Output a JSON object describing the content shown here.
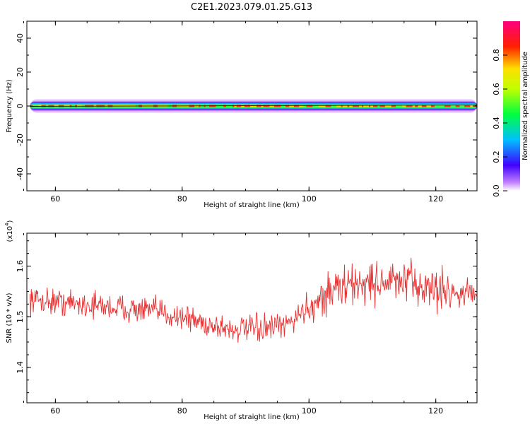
{
  "title": "C2E1.2023.079.01.25.G13",
  "chart_data": [
    {
      "type": "heatmap",
      "xlabel": "Height of straight line (km)",
      "ylabel": "Frequency (Hz)",
      "xlim": [
        55.5,
        126.5
      ],
      "ylim": [
        -50,
        50
      ],
      "x_ticks": [
        60,
        80,
        100,
        120
      ],
      "y_ticks": [
        -40,
        -20,
        0,
        20,
        40
      ],
      "band": {
        "center_hz": 0,
        "x_start": 56,
        "peak_amplitude": 0.95,
        "core_halfwidth_hz": 1.0,
        "outer_halfwidth_hz": 4.0
      },
      "colorbar": {
        "label": "Normalized spectral amplitude",
        "ticks": [
          0.0,
          0.2,
          0.4,
          0.6,
          0.8
        ],
        "range": [
          0,
          1
        ]
      }
    },
    {
      "type": "line",
      "xlabel": "Height of straight line (km)",
      "ylabel": "SNR (10 * v/v)",
      "y_multiplier": "(x10^4)",
      "y_multiplier_base": "(x10",
      "y_multiplier_exp": "4",
      "y_multiplier_close": ")",
      "xlim": [
        55.5,
        126.5
      ],
      "ylim": [
        13300,
        16650
      ],
      "x_ticks": [
        60,
        80,
        100,
        120
      ],
      "y_ticks": [
        14000,
        15000,
        16000
      ],
      "y_tick_labels": [
        "1.4",
        "1.5",
        "1.6"
      ],
      "color": "#e83030",
      "series": [
        {
          "x": [
            56,
            60,
            64,
            68,
            72,
            76,
            80,
            84,
            88,
            92,
            96,
            100,
            104,
            108,
            112,
            116,
            120,
            124,
            126
          ],
          "y": [
            15350,
            15300,
            15250,
            15200,
            15150,
            15100,
            15000,
            14850,
            14750,
            14750,
            14800,
            15200,
            15550,
            15650,
            15700,
            15650,
            15550,
            15450,
            15500
          ]
        }
      ]
    }
  ]
}
